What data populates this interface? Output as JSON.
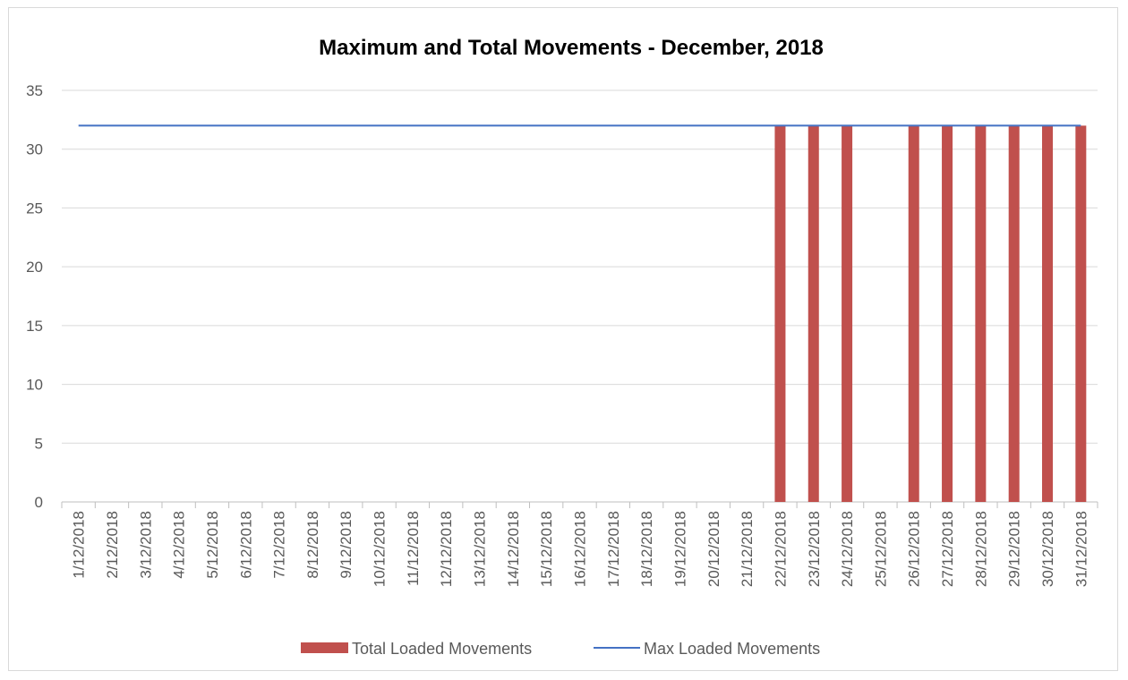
{
  "chart_data": {
    "type": "bar",
    "title": "Maximum and Total Movements  - December, 2018",
    "xlabel": "",
    "ylabel": "",
    "ylim": [
      0,
      35
    ],
    "yticks": [
      0,
      5,
      10,
      15,
      20,
      25,
      30,
      35
    ],
    "grid": true,
    "legend_position": "bottom",
    "categories": [
      "1/12/2018",
      "2/12/2018",
      "3/12/2018",
      "4/12/2018",
      "5/12/2018",
      "6/12/2018",
      "7/12/2018",
      "8/12/2018",
      "9/12/2018",
      "10/12/2018",
      "11/12/2018",
      "12/12/2018",
      "13/12/2018",
      "14/12/2018",
      "15/12/2018",
      "16/12/2018",
      "17/12/2018",
      "18/12/2018",
      "19/12/2018",
      "20/12/2018",
      "21/12/2018",
      "22/12/2018",
      "23/12/2018",
      "24/12/2018",
      "25/12/2018",
      "26/12/2018",
      "27/12/2018",
      "28/12/2018",
      "29/12/2018",
      "30/12/2018",
      "31/12/2018"
    ],
    "series": [
      {
        "name": "Total Loaded Movements",
        "type": "bar",
        "color": "#c0504d",
        "values": [
          0,
          0,
          0,
          0,
          0,
          0,
          0,
          0,
          0,
          0,
          0,
          0,
          0,
          0,
          0,
          0,
          0,
          0,
          0,
          0,
          0,
          32,
          32,
          32,
          0,
          32,
          32,
          32,
          32,
          32,
          32
        ]
      },
      {
        "name": "Max Loaded Movements",
        "type": "line",
        "color": "#4472c4",
        "values": [
          32,
          32,
          32,
          32,
          32,
          32,
          32,
          32,
          32,
          32,
          32,
          32,
          32,
          32,
          32,
          32,
          32,
          32,
          32,
          32,
          32,
          32,
          32,
          32,
          32,
          32,
          32,
          32,
          32,
          32,
          32
        ]
      }
    ]
  }
}
